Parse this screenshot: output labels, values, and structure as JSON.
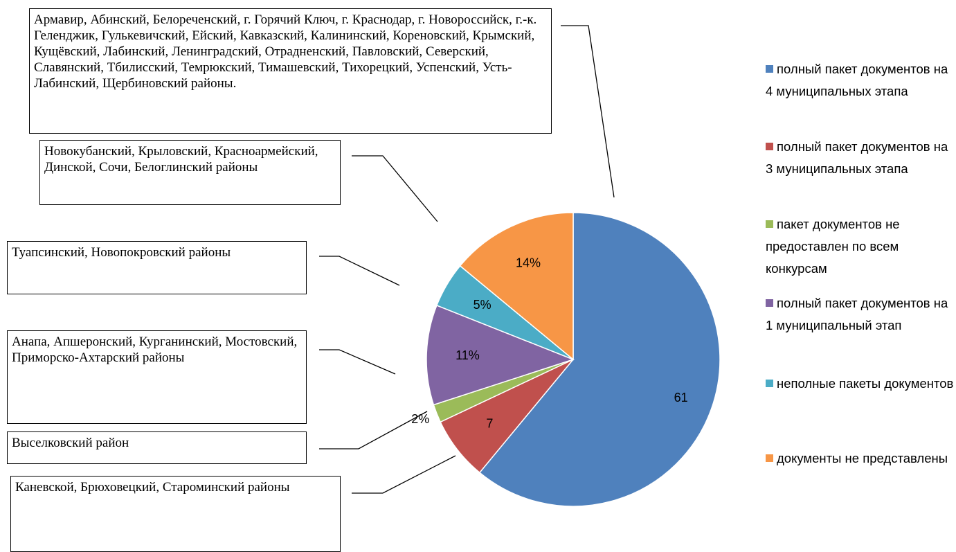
{
  "chart_data": {
    "type": "pie",
    "categories": [
      "полный пакет документов на 4 муниципальных этапа",
      "полный пакет документов на 3 муниципальных этапа",
      "пакет документов не предоставлен по всем конкурсам",
      "полный пакет документов на 1 муниципальный этап",
      "неполные пакеты документов",
      "документы не представлены"
    ],
    "values": [
      61,
      7,
      2,
      11,
      5,
      14
    ],
    "value_labels": [
      "61",
      "7",
      "2%",
      "11%",
      "5%",
      "14%"
    ],
    "colors": [
      "#4f81bd",
      "#c0504d",
      "#9bbb59",
      "#8064a2",
      "#4bacc6",
      "#f79646"
    ],
    "legend": "right",
    "annotations": [
      "Армавир, Абинский, Белореченский, г. Горячий Ключ, г. Краснодар, г. Новороссийск, г.-к. Геленджик, Гулькевичский, Ейский, Кавказский, Калининский, Кореновский, Крымский, Кущёвский, Лабинский, Ленинградский, Отрадненский, Павловский, Северский, Славянский, Тбилисский, Темрюкский, Тимашевский, Тихорецкий, Успенский, Усть-Лабинский, Щербиновский районы.",
      "Новокубанский, Крыловский, Красноармейский, Динской, Сочи, Белоглинский районы",
      "Туапсинский, Новопокровский районы",
      "Анапа, Апшеронский, Курганинский, Мостовский, Приморско-Ахтарский районы",
      "Выселковский район",
      "Каневской, Брюховецкий, Староминский районы"
    ]
  }
}
